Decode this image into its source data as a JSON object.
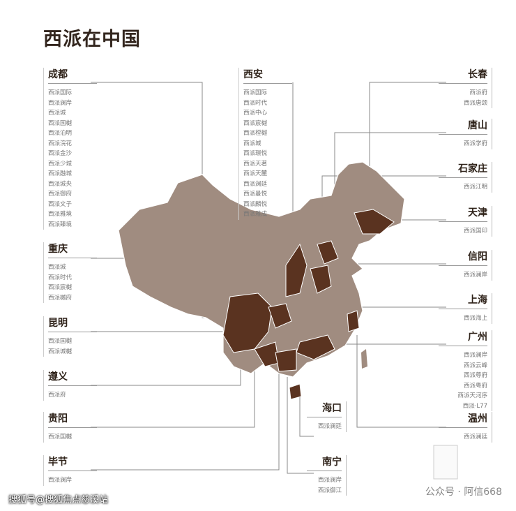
{
  "title": "西派在中国",
  "left": [
    {
      "city": "成都",
      "projects": [
        "西派国际",
        "西派澜岸",
        "西派城",
        "西派国樾",
        "西派泊明",
        "西派浣花",
        "西派金沙",
        "西派少城",
        "西派融城",
        "西派城央",
        "西派御府",
        "西派文子",
        "西派雅境",
        "西派臻境"
      ]
    },
    {
      "city": "重庆",
      "projects": [
        "西派城",
        "西派时代",
        "西派宸樾",
        "西派樾府"
      ]
    },
    {
      "city": "昆明",
      "projects": [
        "西派国樾",
        "西派城樾"
      ]
    },
    {
      "city": "遵义",
      "projects": [
        "西派府"
      ]
    },
    {
      "city": "贵阳",
      "projects": [
        "西派国樾"
      ]
    },
    {
      "city": "毕节",
      "projects": [
        "西派澜岸"
      ]
    }
  ],
  "center": {
    "city": "西安",
    "projects": [
      "西派国际",
      "西派时代",
      "西派中心",
      "西派宸樾",
      "西派樘樾",
      "西派城",
      "西派璟悦",
      "西派天著",
      "西派天麓",
      "西派澜廷",
      "西派曼悦",
      "西派麟悦",
      "西派雅成"
    ]
  },
  "right": [
    {
      "city": "长春",
      "projects": [
        "西派府",
        "西派唐颂"
      ]
    },
    {
      "city": "唐山",
      "projects": [
        "西派学府"
      ]
    },
    {
      "city": "石家庄",
      "projects": [
        "西派江明"
      ]
    },
    {
      "city": "天津",
      "projects": [
        "西派国印"
      ]
    },
    {
      "city": "信阳",
      "projects": [
        "西派澜岸"
      ]
    },
    {
      "city": "上海",
      "projects": [
        "西派海上"
      ]
    },
    {
      "city": "广州",
      "projects": [
        "西派澜岸",
        "西派云峰",
        "西派尊府",
        "西派粤府",
        "西派天河序",
        "西派·L77"
      ]
    },
    {
      "city": "温州",
      "projects": [
        "西派澜廷"
      ]
    }
  ],
  "bottom": [
    {
      "city": "海口",
      "projects": [
        "西派澜廷"
      ]
    },
    {
      "city": "南宁",
      "projects": [
        "西派澜岸",
        "西派御江"
      ]
    }
  ],
  "footer": {
    "left": "搜狐号@搜狐焦点慈溪站",
    "right": "公众号 · 阿信668"
  },
  "colors": {
    "map_base": "#a08c80",
    "map_presence": "#5a3320",
    "border": "#ffffff"
  }
}
